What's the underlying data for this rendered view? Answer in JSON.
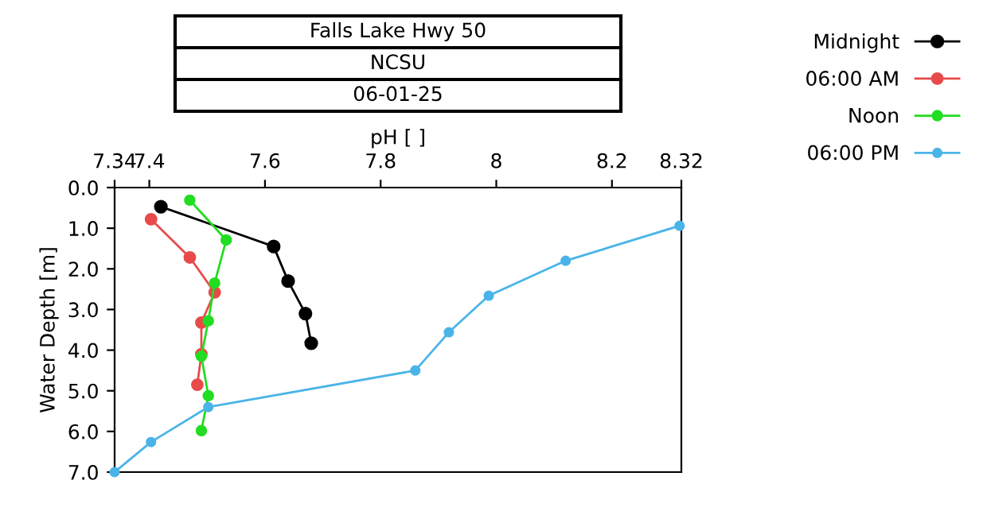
{
  "chart_data": {
    "type": "line",
    "title": "Falls Lake Hwy 50",
    "subtitle": "NCSU",
    "annotations": [
      "06-01-25"
    ],
    "xlabel": "pH [ ]",
    "ylabel": "Water Depth [m]",
    "xlim": [
      7.34,
      8.32
    ],
    "xticks": [
      7.34,
      7.4,
      7.6,
      7.8,
      8,
      8.2,
      8.32
    ],
    "ylim": [
      7,
      0
    ],
    "yticks": [
      {
        "value": 0,
        "label": "0.0"
      },
      {
        "value": 1,
        "label": "1.0"
      },
      {
        "value": 2,
        "label": "2.0"
      },
      {
        "value": 3,
        "label": "3.0"
      },
      {
        "value": 4,
        "label": "4.0"
      },
      {
        "value": 5,
        "label": "5.0"
      },
      {
        "value": 6,
        "label": "6.0"
      },
      {
        "value": 7,
        "label": "7.0"
      }
    ],
    "grid": false,
    "legend": "top right",
    "marker": "circle",
    "line_style": "solid",
    "series": [
      {
        "name": "Midnight",
        "color": "#000000",
        "x": [
          7.42,
          7.615,
          7.64,
          7.67,
          7.68
        ],
        "values": [
          0.47,
          1.45,
          2.3,
          3.1,
          3.83
        ]
      },
      {
        "name": "06:00 AM",
        "color": "#e84a4a",
        "x": [
          7.403,
          7.47,
          7.513,
          7.49,
          7.49,
          7.483
        ],
        "values": [
          0.78,
          1.72,
          2.58,
          3.32,
          4.1,
          4.85
        ]
      },
      {
        "name": "Noon",
        "color": "#22dd22",
        "x": [
          7.47,
          7.533,
          7.513,
          7.502,
          7.49,
          7.502,
          7.49
        ],
        "values": [
          0.31,
          1.29,
          2.35,
          3.28,
          4.15,
          5.12,
          5.98
        ]
      },
      {
        "name": "06:00 PM",
        "color": "#4ab4e8",
        "x": [
          8.317,
          8.12,
          7.987,
          7.918,
          7.86,
          7.502,
          7.403,
          7.34
        ],
        "values": [
          0.94,
          1.8,
          2.66,
          3.56,
          4.5,
          5.4,
          6.26,
          7.0
        ]
      }
    ]
  }
}
